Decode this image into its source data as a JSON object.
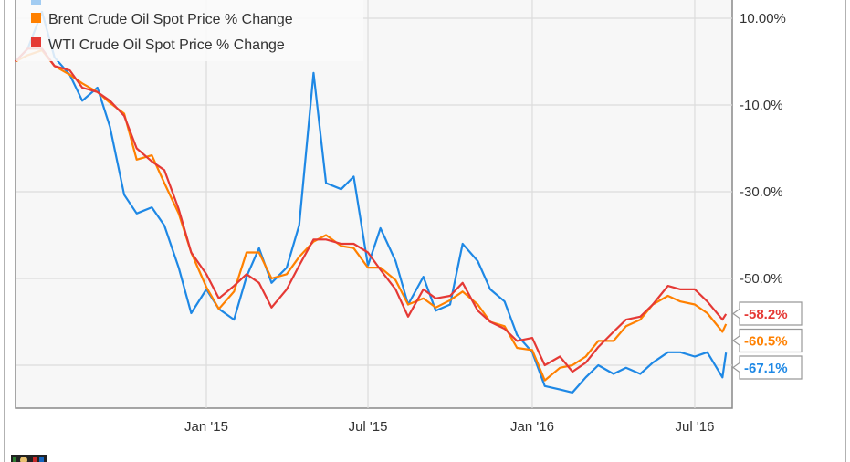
{
  "chart_data": {
    "type": "line",
    "title": "",
    "xlabel": "",
    "ylabel": "",
    "ylim": [
      -80,
      14.2
    ],
    "grid": true,
    "legend_position": "top-left",
    "y_ticks": [
      {
        "value": 10,
        "label": "10.00%"
      },
      {
        "value": -10,
        "label": "-10.0%"
      },
      {
        "value": -30,
        "label": "-30.0%"
      },
      {
        "value": -50,
        "label": "-50.0%"
      },
      {
        "value": -70,
        "label": ""
      }
    ],
    "x_ticks": [
      {
        "date": "2015-01-01",
        "label": "Jan '15"
      },
      {
        "date": "2015-07-01",
        "label": "Jul '15"
      },
      {
        "date": "2016-01-01",
        "label": "Jan '16"
      },
      {
        "date": "2016-07-01",
        "label": "Jul '16"
      }
    ],
    "x": [
      "2014-06-01",
      "2014-06-15",
      "2014-07-01",
      "2014-07-15",
      "2014-08-01",
      "2014-08-15",
      "2014-09-01",
      "2014-09-15",
      "2014-10-01",
      "2014-10-15",
      "2014-11-01",
      "2014-11-15",
      "2014-12-01",
      "2014-12-15",
      "2015-01-01",
      "2015-01-15",
      "2015-02-01",
      "2015-02-15",
      "2015-03-01",
      "2015-03-15",
      "2015-04-01",
      "2015-04-15",
      "2015-05-01",
      "2015-05-15",
      "2015-06-01",
      "2015-06-15",
      "2015-07-01",
      "2015-07-15",
      "2015-08-01",
      "2015-08-15",
      "2015-09-01",
      "2015-09-15",
      "2015-10-01",
      "2015-10-15",
      "2015-11-01",
      "2015-11-15",
      "2015-12-01",
      "2015-12-15",
      "2016-01-01",
      "2016-01-15",
      "2016-02-01",
      "2016-02-15",
      "2016-03-01",
      "2016-03-15",
      "2016-04-01",
      "2016-04-15",
      "2016-05-01",
      "2016-05-15",
      "2016-06-01",
      "2016-06-15",
      "2016-07-01",
      "2016-07-15",
      "2016-08-01",
      "2016-08-05"
    ],
    "series": [
      {
        "name": "",
        "color": "#1e88e5",
        "end_label": "-67.1%",
        "values": [
          0,
          3,
          11.5,
          1,
          -3,
          -9,
          -6,
          -15,
          -30.7,
          -35,
          -33.6,
          -37.8,
          -47.5,
          -58,
          -52.5,
          -57,
          -59.5,
          -49.6,
          -43,
          -51,
          -47.5,
          -37.7,
          -2.6,
          -28,
          -29.4,
          -26.5,
          -47,
          -38.4,
          -46,
          -56,
          -49.6,
          -57.4,
          -56,
          -42,
          -46,
          -52.5,
          -55.3,
          -63,
          -67,
          -74.8,
          -75.6,
          -76.3,
          -72.8,
          -70,
          -72,
          -70.6,
          -72,
          -69.4,
          -67,
          -67,
          -68,
          -67,
          -72.8,
          -67.1
        ]
      },
      {
        "name": "Brent Crude Oil Spot Price % Change",
        "color": "#ff8000",
        "end_label": "-60.5%",
        "values": [
          0,
          1.5,
          2.6,
          -1,
          -3,
          -5,
          -7,
          -9.5,
          -12,
          -22.6,
          -21.6,
          -28,
          -35,
          -44,
          -52,
          -57,
          -53,
          -44,
          -44,
          -50,
          -49,
          -45,
          -41.5,
          -40,
          -42.5,
          -43,
          -47.5,
          -47.5,
          -50.4,
          -56,
          -54.6,
          -56.7,
          -55,
          -53,
          -56,
          -60,
          -61,
          -66,
          -66.5,
          -73.5,
          -70.6,
          -70,
          -68,
          -64.4,
          -64.4,
          -61,
          -59.5,
          -56,
          -54,
          -55.3,
          -56,
          -58,
          -62.3,
          -60.5
        ]
      },
      {
        "name": "WTI Crude Oil Spot Price % Change",
        "color": "#e53935",
        "end_label": "-58.2%",
        "values": [
          0,
          3,
          3,
          -1,
          -2,
          -6,
          -7,
          -9,
          -12.5,
          -20,
          -23,
          -25,
          -34,
          -44,
          -49,
          -54.6,
          -51.7,
          -49,
          -51,
          -56.7,
          -52.5,
          -47,
          -41,
          -41,
          -42,
          -42,
          -44,
          -48,
          -52.5,
          -58.8,
          -52.5,
          -54.6,
          -54,
          -51,
          -57.4,
          -60,
          -61.6,
          -64.4,
          -63.7,
          -70,
          -68,
          -71.5,
          -69.4,
          -65.8,
          -62.3,
          -59.5,
          -58.8,
          -56,
          -51.7,
          -52.5,
          -52.5,
          -55.3,
          -59.5,
          -58.2
        ]
      }
    ]
  },
  "colors": {
    "plot_background": "#f7f7f7",
    "grid": "#dcdcdc",
    "axis": "#888888"
  }
}
